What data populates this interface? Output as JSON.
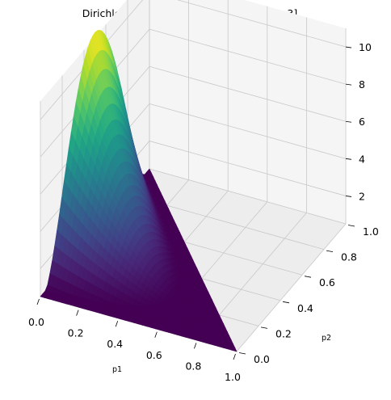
{
  "chart_data": {
    "type": "surface3d",
    "title": "Dirichlet Distribution with alpha = [1, 3, 3]",
    "alpha": [
      1,
      3,
      3
    ],
    "xlabel": "p1",
    "ylabel": "p2",
    "zlabel": "",
    "xlim": [
      0,
      1
    ],
    "ylim": [
      0,
      1
    ],
    "zlim": [
      0.5,
      11
    ],
    "xticks": [
      "0.0",
      "0.2",
      "0.4",
      "0.6",
      "0.8",
      "1.0"
    ],
    "yticks": [
      "0.0",
      "0.2",
      "0.4",
      "0.6",
      "0.8",
      "1.0"
    ],
    "zticks": [
      "2",
      "4",
      "6",
      "8",
      "10"
    ],
    "colormap": "viridis",
    "z_max": 11.25,
    "z_max_at": {
      "p1": 0,
      "p2": 0.5
    },
    "grid": true,
    "pane_color": "#f2f2f2"
  }
}
